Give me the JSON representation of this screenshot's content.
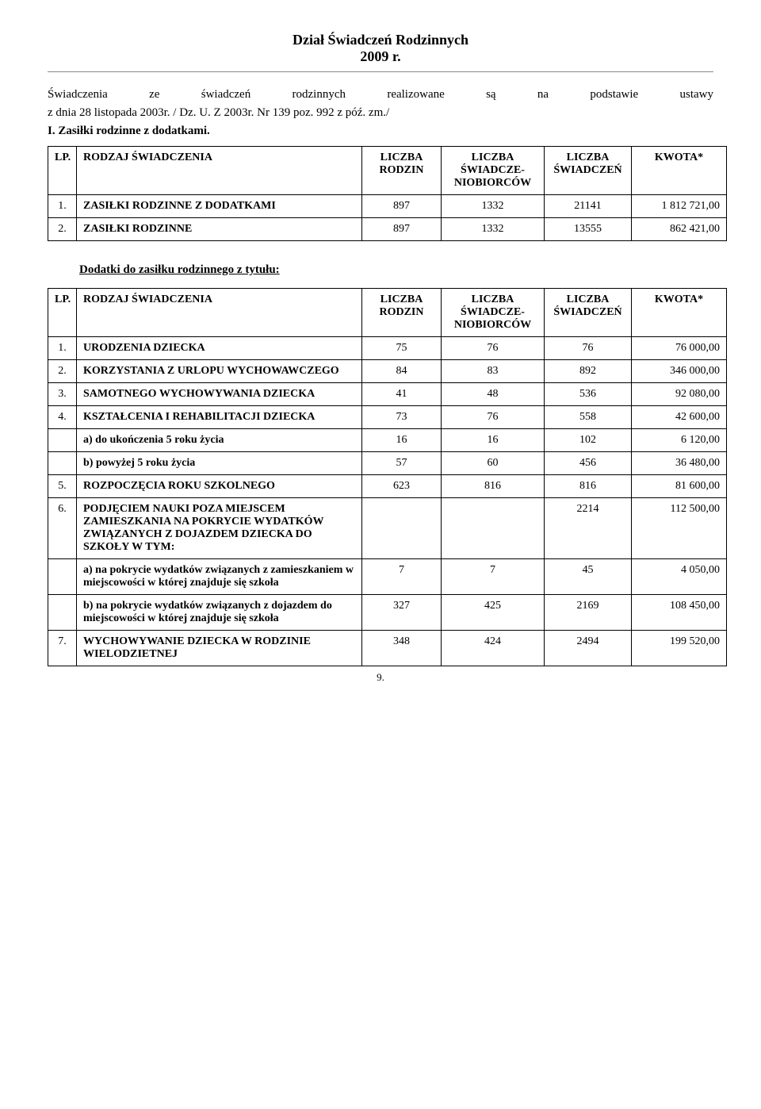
{
  "title": {
    "line1": "Dział Świadczeń Rodzinnych",
    "line2": "2009 r."
  },
  "intro": {
    "para": "Świadczenia ze świadczeń rodzinnych realizowane są na podstawie ustawy",
    "law": "z dnia 28 listopada 2003r. / Dz. U. Z 2003r. Nr 139 poz. 992 z póź. zm./"
  },
  "section1": {
    "heading": "I. Zasiłki rodzinne z dodatkami.",
    "header": {
      "lp": "LP.",
      "name": "RODZAJ ŚWIADCZENIA",
      "c1": "LICZBA RODZIN",
      "c2": "LICZBA ŚWIADCZE-NIOBIORCÓW",
      "c3": "LICZBA ŚWIADCZEŃ",
      "c4": "KWOTA*"
    },
    "rows": [
      {
        "lp": "1.",
        "name": "ZASIŁKI RODZINNE Z DODATKAMI",
        "v1": "897",
        "v2": "1332",
        "v3": "21141",
        "v4": "1 812 721,00"
      },
      {
        "lp": "2.",
        "name": "ZASIŁKI RODZINNE",
        "v1": "897",
        "v2": "1332",
        "v3": "13555",
        "v4": "862 421,00"
      }
    ]
  },
  "section2": {
    "heading": "Dodatki do zasiłku rodzinnego z tytułu:",
    "header": {
      "lp": "LP.",
      "name": "RODZAJ ŚWIADCZENIA",
      "c1": "LICZBA RODZIN",
      "c2": "LICZBA ŚWIADCZE-NIOBIORCÓW",
      "c3": "LICZBA ŚWIADCZEŃ",
      "c4": "KWOTA*"
    },
    "rows": [
      {
        "lp": "1.",
        "name": "URODZENIA DZIECKA",
        "v1": "75",
        "v2": "76",
        "v3": "76",
        "v4": "76 000,00"
      },
      {
        "lp": "2.",
        "name": "KORZYSTANIA Z URLOPU WYCHOWAWCZEGO",
        "v1": "84",
        "v2": "83",
        "v3": "892",
        "v4": "346 000,00"
      },
      {
        "lp": "3.",
        "name": "SAMOTNEGO WYCHOWYWANIA DZIECKA",
        "v1": "41",
        "v2": "48",
        "v3": "536",
        "v4": "92 080,00"
      },
      {
        "lp": "4.",
        "name": "KSZTAŁCENIA I REHABILITACJI DZIECKA",
        "v1": "73",
        "v2": "76",
        "v3": "558",
        "v4": "42 600,00",
        "subs": [
          {
            "name": "a) do ukończenia 5 roku życia",
            "v1": "16",
            "v2": "16",
            "v3": "102",
            "v4": "6 120,00"
          },
          {
            "name": "b) powyżej 5 roku życia",
            "v1": "57",
            "v2": "60",
            "v3": "456",
            "v4": "36 480,00"
          }
        ]
      },
      {
        "lp": "5.",
        "name": "ROZPOCZĘCIA ROKU SZKOLNEGO",
        "v1": "623",
        "v2": "816",
        "v3": "816",
        "v4": "81 600,00"
      },
      {
        "lp": "6.",
        "name": "PODJĘCIEM NAUKI POZA MIEJSCEM ZAMIESZKANIA NA POKRYCIE WYDATKÓW ZWIĄZANYCH Z DOJAZDEM DZIECKA DO SZKOŁY W TYM:",
        "v1": "",
        "v2": "",
        "v3": "2214",
        "v4": "112 500,00",
        "subs": [
          {
            "name": "a) na pokrycie wydatków związanych z zamieszkaniem w miejscowości w której znajduje się szkoła",
            "v1": "7",
            "v2": "7",
            "v3": "45",
            "v4": "4 050,00"
          },
          {
            "name": "b) na pokrycie wydatków związanych z dojazdem do miejscowości w której znajduje się szkoła",
            "v1": "327",
            "v2": "425",
            "v3": "2169",
            "v4": "108 450,00"
          }
        ]
      },
      {
        "lp": "7.",
        "name": "WYCHOWYWANIE DZIECKA W RODZINIE WIELODZIETNEJ",
        "v1": "348",
        "v2": "424",
        "v3": "2494",
        "v4": "199 520,00"
      }
    ]
  },
  "pagenum": "9."
}
